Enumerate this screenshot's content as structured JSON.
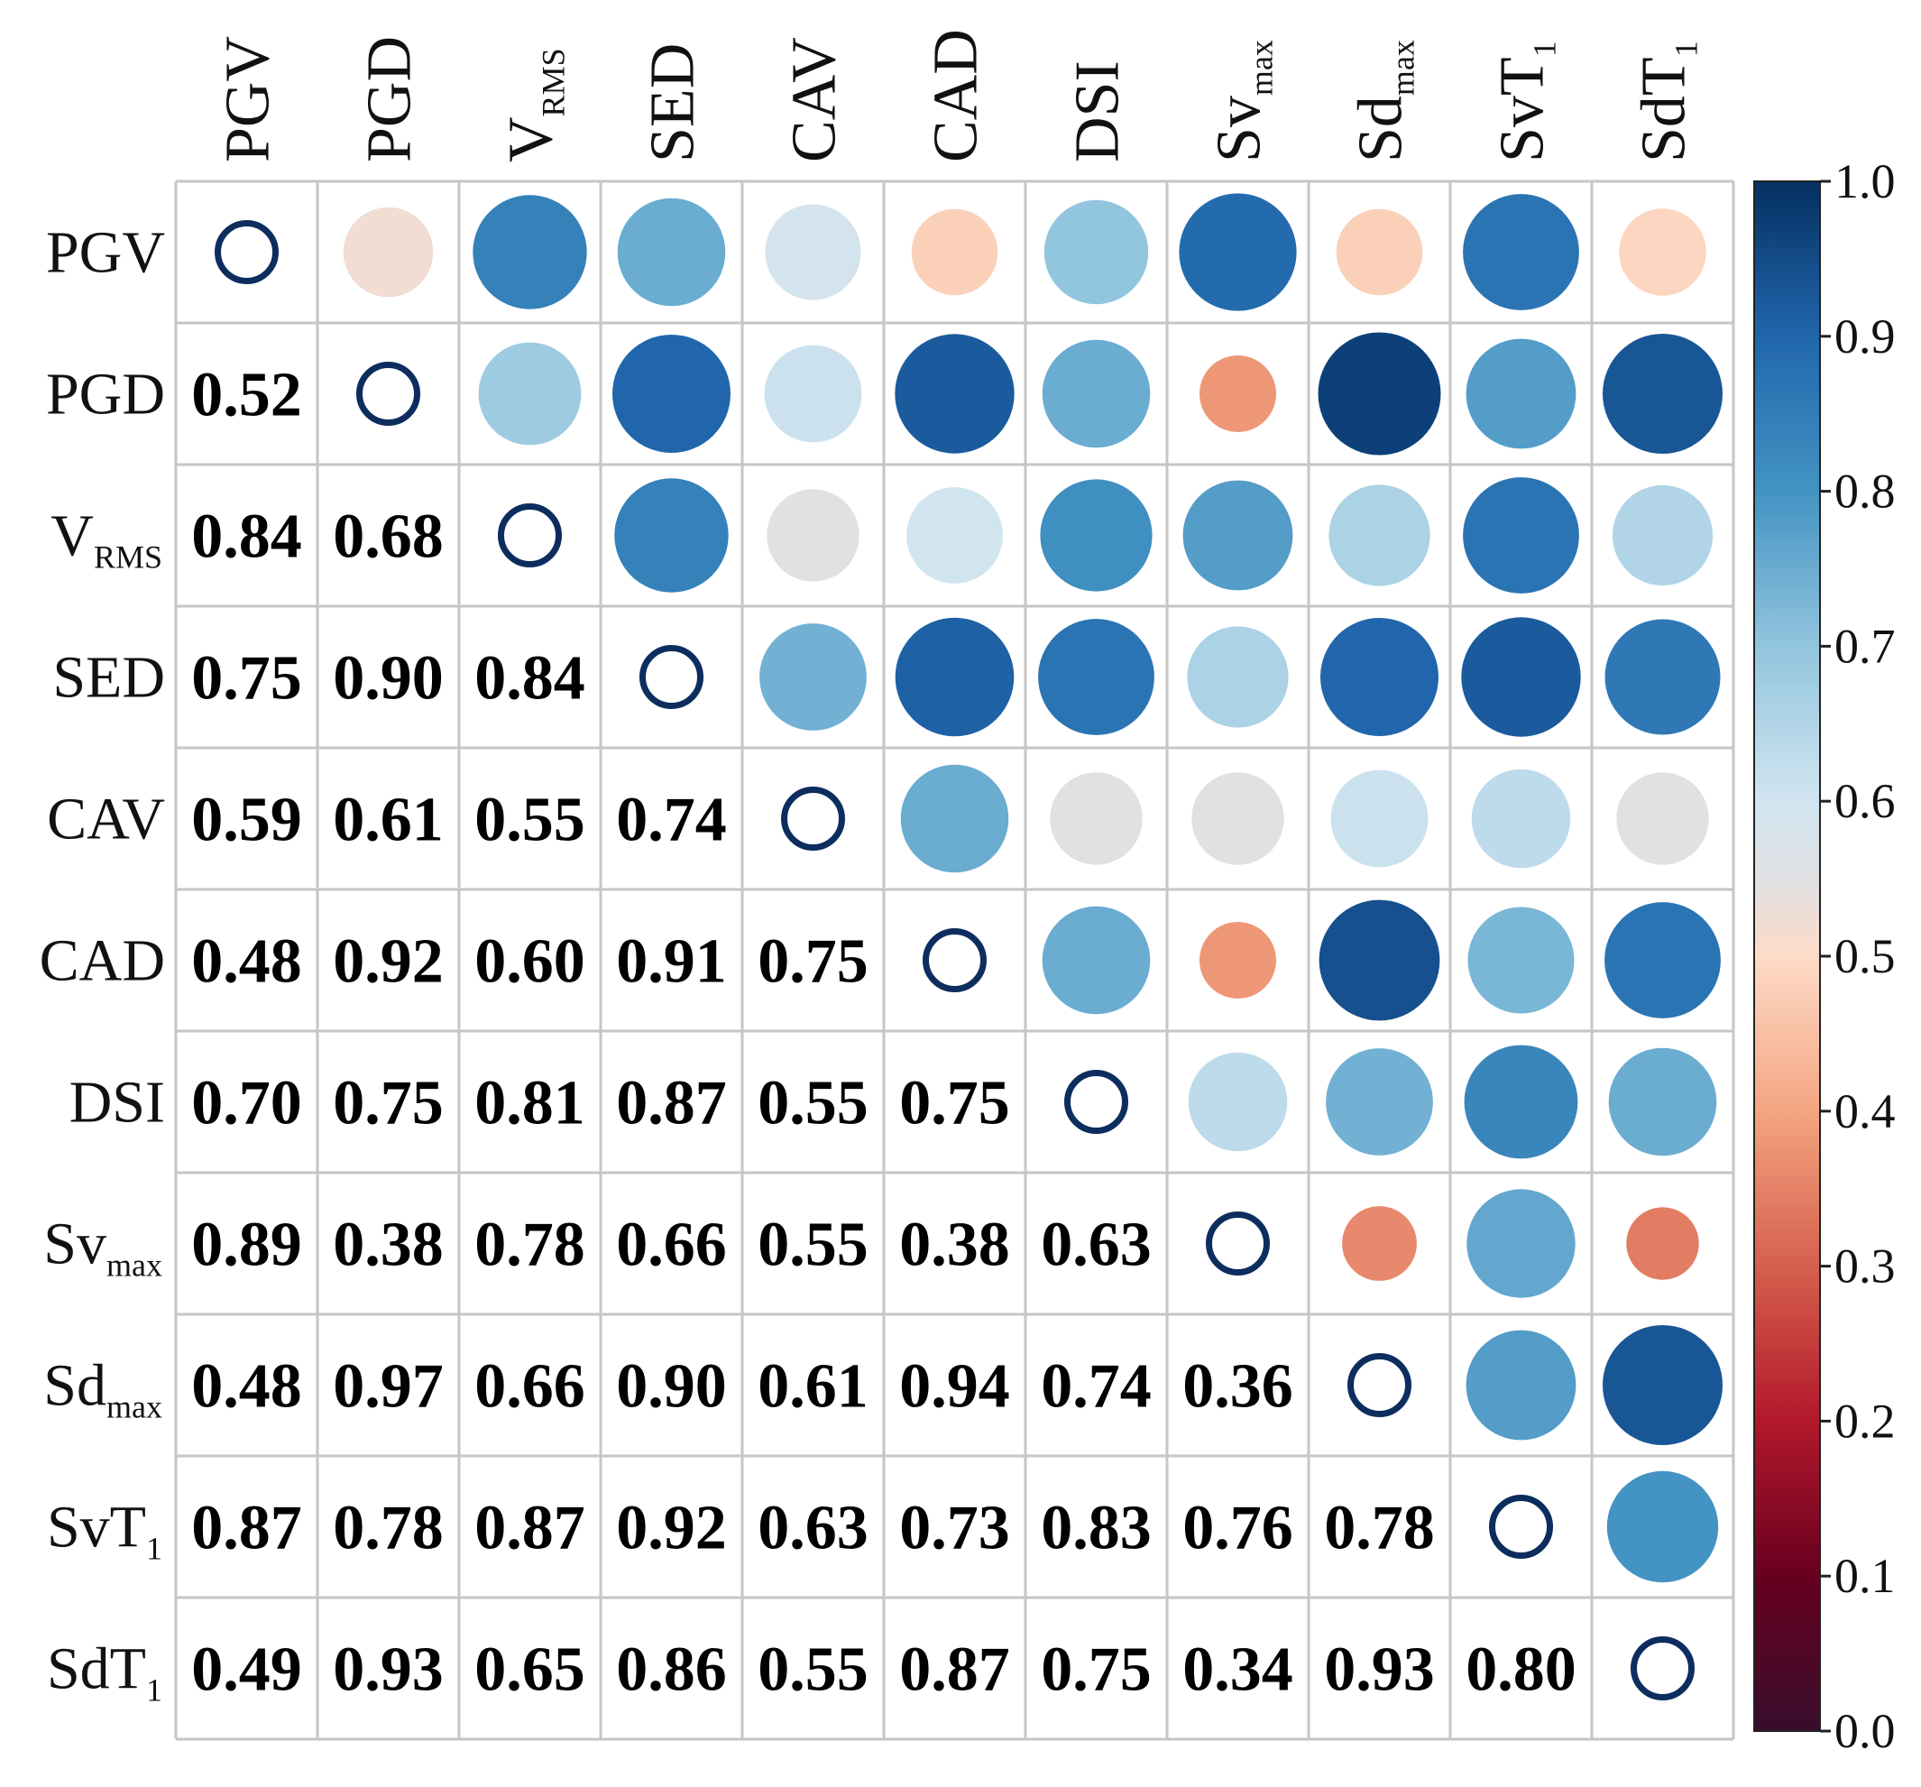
{
  "chart_data": {
    "type": "heatmap",
    "subtype": "correlation-matrix",
    "variables": [
      {
        "base": "PGV",
        "sub": ""
      },
      {
        "base": "PGD",
        "sub": ""
      },
      {
        "base": "V",
        "sub": "RMS"
      },
      {
        "base": "SED",
        "sub": ""
      },
      {
        "base": "CAV",
        "sub": ""
      },
      {
        "base": "CAD",
        "sub": ""
      },
      {
        "base": "DSI",
        "sub": ""
      },
      {
        "base": "Sv",
        "sub": "max"
      },
      {
        "base": "Sd",
        "sub": "max"
      },
      {
        "base": "SvT",
        "sub": "1"
      },
      {
        "base": "SdT",
        "sub": "1"
      }
    ],
    "matrix": [
      [
        1.0,
        0.52,
        0.84,
        0.75,
        0.59,
        0.48,
        0.7,
        0.89,
        0.48,
        0.87,
        0.49
      ],
      [
        0.52,
        1.0,
        0.68,
        0.9,
        0.61,
        0.92,
        0.75,
        0.38,
        0.97,
        0.78,
        0.93
      ],
      [
        0.84,
        0.68,
        1.0,
        0.84,
        0.55,
        0.6,
        0.81,
        0.78,
        0.66,
        0.87,
        0.65
      ],
      [
        0.75,
        0.9,
        0.84,
        1.0,
        0.74,
        0.91,
        0.87,
        0.66,
        0.9,
        0.92,
        0.86
      ],
      [
        0.59,
        0.61,
        0.55,
        0.74,
        1.0,
        0.75,
        0.55,
        0.55,
        0.61,
        0.63,
        0.55
      ],
      [
        0.48,
        0.92,
        0.6,
        0.91,
        0.75,
        1.0,
        0.75,
        0.38,
        0.94,
        0.73,
        0.87
      ],
      [
        0.7,
        0.75,
        0.81,
        0.87,
        0.55,
        0.75,
        1.0,
        0.63,
        0.74,
        0.83,
        0.75
      ],
      [
        0.89,
        0.38,
        0.78,
        0.66,
        0.55,
        0.38,
        0.63,
        1.0,
        0.36,
        0.76,
        0.34
      ],
      [
        0.48,
        0.97,
        0.66,
        0.9,
        0.61,
        0.94,
        0.74,
        0.36,
        1.0,
        0.78,
        0.93
      ],
      [
        0.87,
        0.78,
        0.87,
        0.92,
        0.63,
        0.73,
        0.83,
        0.76,
        0.78,
        1.0,
        0.8
      ],
      [
        0.49,
        0.93,
        0.65,
        0.86,
        0.55,
        0.87,
        0.75,
        0.34,
        0.93,
        0.8,
        1.0
      ]
    ],
    "lower_triangle": "numbers",
    "upper_triangle": "circles",
    "diagonal": "hollow-circle",
    "colorbar": {
      "range": [
        0.0,
        1.0
      ],
      "ticks": [
        "0.0",
        "0.1",
        "0.2",
        "0.3",
        "0.4",
        "0.5",
        "0.6",
        "0.7",
        "0.8",
        "0.9",
        "1.0"
      ],
      "colormap": "RdBu"
    },
    "colors": {
      "grid": "#c6c6c6",
      "diagonal_ring": "#0c2d5e",
      "text": "#000000"
    }
  }
}
